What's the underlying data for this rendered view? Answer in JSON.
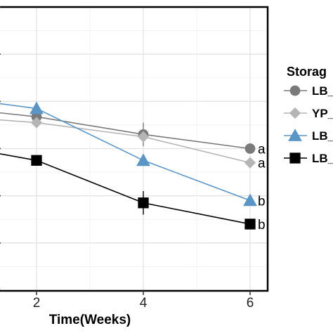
{
  "chart_data": {
    "type": "line",
    "xlabel": "Time(Weeks)",
    "x_ticks": [
      "2",
      "4",
      "6"
    ],
    "xlim": [
      -0.7,
      6.35
    ],
    "ylim": [
      0,
      12
    ],
    "grid": true,
    "legend_title": "Storag",
    "legend_position": "right",
    "series": [
      {
        "name": "LB_",
        "marker": "circle",
        "color": "#7a7a7a",
        "x": [
          -0.7,
          2,
          4,
          6
        ],
        "y": [
          8.0,
          7.35,
          6.6,
          6.0
        ],
        "label": "a"
      },
      {
        "name": "YP_",
        "marker": "diamond",
        "color": "#b5b5b5",
        "x": [
          -0.7,
          2,
          4,
          6
        ],
        "y": [
          7.55,
          7.1,
          6.5,
          5.4
        ],
        "label": "a"
      },
      {
        "name": "LB_",
        "marker": "triangle",
        "color": "#5b95c5",
        "x": [
          -0.7,
          2,
          4,
          6
        ],
        "y": [
          8.5,
          7.7,
          5.5,
          3.8
        ],
        "label": "b"
      },
      {
        "name": "LB_",
        "marker": "square",
        "color": "#000000",
        "x": [
          -0.7,
          2,
          4,
          6
        ],
        "y": [
          6.6,
          5.5,
          3.7,
          2.8
        ],
        "label": "b"
      }
    ],
    "error_bars": [
      {
        "series": 0,
        "x": 2,
        "low": 7.05,
        "high": 7.65
      },
      {
        "series": 0,
        "x": 4,
        "low": 6.1,
        "high": 7.1
      },
      {
        "series": 3,
        "x": 4,
        "low": 3.2,
        "high": 4.2
      }
    ]
  }
}
